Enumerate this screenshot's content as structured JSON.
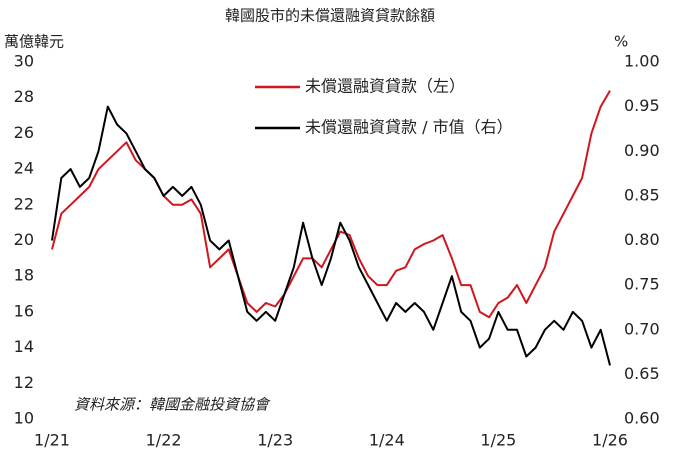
{
  "chart_data": {
    "type": "line",
    "title": "韓國股市的未償還融資貸款餘額",
    "y_label": "萬億韓元",
    "y2_label": "%",
    "annotation": "資料來源：韓國金融投資協會",
    "x": [
      "1/21",
      "2/21",
      "3/21",
      "4/21",
      "5/21",
      "6/21",
      "7/21",
      "8/21",
      "9/21",
      "10/21",
      "11/21",
      "12/21",
      "1/22",
      "2/22",
      "3/22",
      "4/22",
      "5/22",
      "6/22",
      "7/22",
      "8/22",
      "9/22",
      "10/22",
      "11/22",
      "12/22",
      "1/23",
      "2/23",
      "3/23",
      "4/23",
      "5/23",
      "6/23",
      "7/23",
      "8/23",
      "9/23",
      "10/23",
      "11/23",
      "12/23",
      "1/24",
      "2/24",
      "3/24",
      "4/24",
      "5/24",
      "6/24",
      "7/24",
      "8/24",
      "9/24",
      "10/24",
      "11/24",
      "12/24",
      "1/25",
      "2/25",
      "3/25",
      "4/25",
      "5/25",
      "6/25",
      "7/25",
      "8/25",
      "9/25",
      "10/25",
      "11/25",
      "12/25",
      "1/26"
    ],
    "xticks": [
      "1/21",
      "1/22",
      "1/23",
      "1/24",
      "1/25",
      "1/26"
    ],
    "series": [
      {
        "name": "未償還融資貸款（左）",
        "color": "#d0161e",
        "axis": "y",
        "values": [
          19.5,
          21.5,
          22,
          22.5,
          23,
          24,
          24.5,
          25,
          25.5,
          24.5,
          24,
          23.5,
          22.5,
          22,
          22,
          22.3,
          21.5,
          18.5,
          19,
          19.5,
          18,
          16.5,
          16,
          16.5,
          16.3,
          17,
          18,
          19,
          19,
          18.5,
          19.5,
          20.5,
          20.3,
          19,
          18,
          17.5,
          17.5,
          18.3,
          18.5,
          19.5,
          19.8,
          20,
          20.3,
          19,
          17.5,
          17.5,
          16,
          15.7,
          16.5,
          16.8,
          17.5,
          16.5,
          17.5,
          18.5,
          20.5,
          21.5,
          22.5,
          23.5,
          26,
          27.5,
          28.4
        ]
      },
      {
        "name": "未償還融資貸款 / 市值（右）",
        "color": "#000000",
        "axis": "y2",
        "values": [
          0.8,
          0.87,
          0.88,
          0.86,
          0.87,
          0.9,
          0.95,
          0.93,
          0.92,
          0.9,
          0.88,
          0.87,
          0.85,
          0.86,
          0.85,
          0.86,
          0.84,
          0.8,
          0.79,
          0.8,
          0.76,
          0.72,
          0.71,
          0.72,
          0.71,
          0.74,
          0.77,
          0.82,
          0.78,
          0.75,
          0.78,
          0.82,
          0.8,
          0.77,
          0.75,
          0.73,
          0.71,
          0.73,
          0.72,
          0.73,
          0.72,
          0.7,
          0.73,
          0.76,
          0.72,
          0.71,
          0.68,
          0.69,
          0.72,
          0.7,
          0.7,
          0.67,
          0.68,
          0.7,
          0.71,
          0.7,
          0.72,
          0.71,
          0.68,
          0.7,
          0.66
        ]
      }
    ],
    "ylim": [
      10,
      30
    ],
    "yticks": [
      10,
      12,
      14,
      16,
      18,
      20,
      22,
      24,
      26,
      28,
      30
    ],
    "y2lim": [
      0.6,
      1.0
    ],
    "y2ticks": [
      {
        "value": 0.6,
        "label": "0.60"
      },
      {
        "value": 0.65,
        "label": "0.65"
      },
      {
        "value": 0.7,
        "label": "0.70"
      },
      {
        "value": 0.75,
        "label": "0.75"
      },
      {
        "value": 0.8,
        "label": "0.80"
      },
      {
        "value": 0.85,
        "label": "0.85"
      },
      {
        "value": 0.9,
        "label": "0.90"
      },
      {
        "value": 0.95,
        "label": "0.95"
      },
      {
        "value": 1.0,
        "label": "1.00"
      }
    ],
    "grid": false
  }
}
